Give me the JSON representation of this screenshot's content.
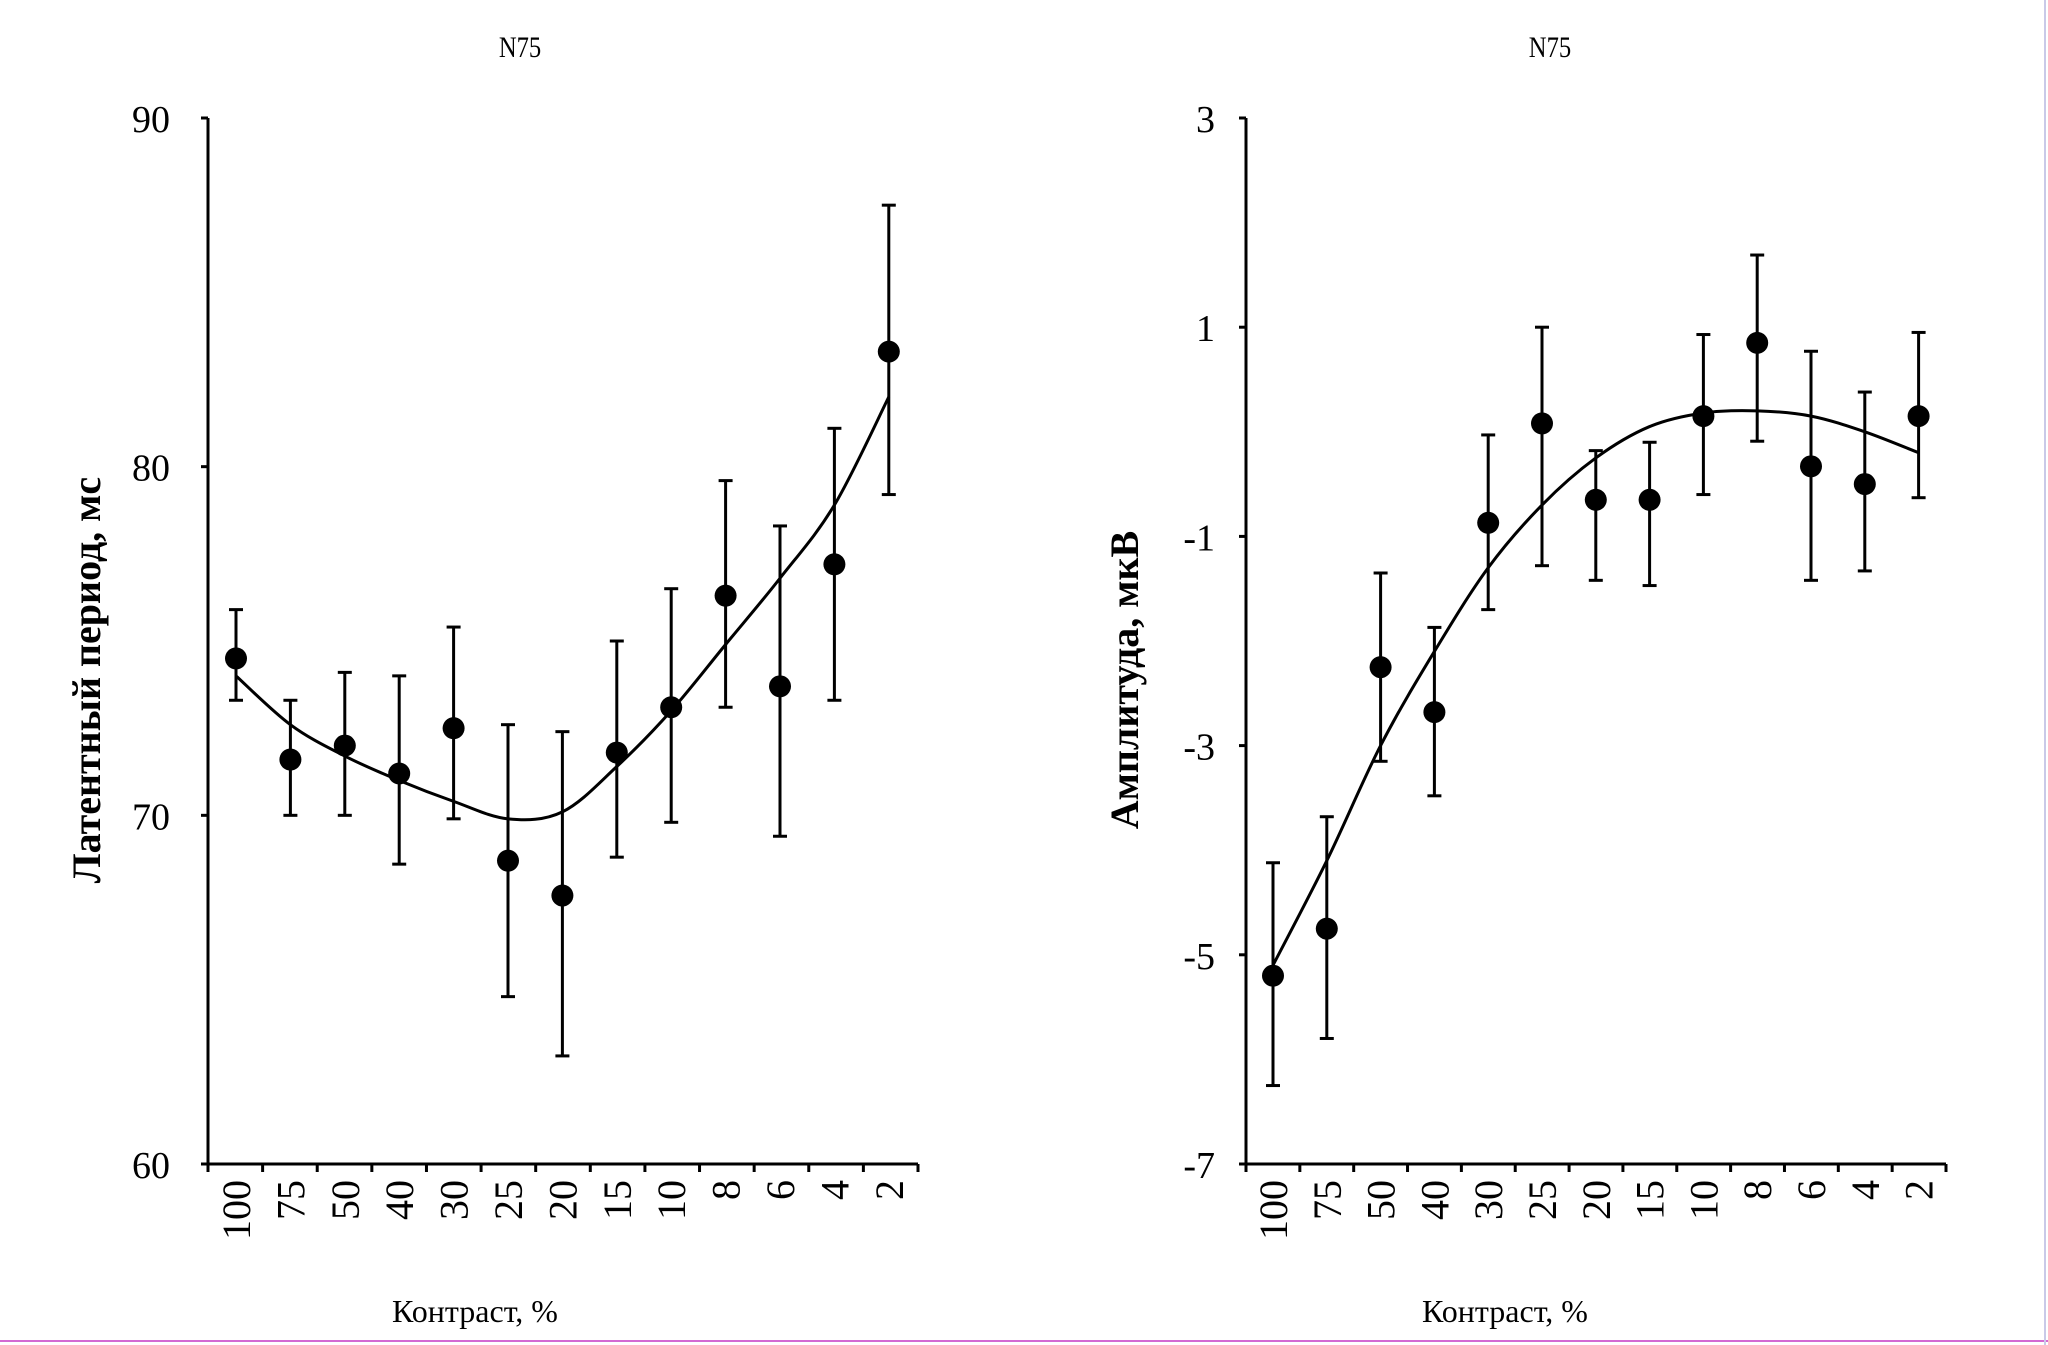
{
  "chart_data": [
    {
      "type": "scatter",
      "title": "N75",
      "xlabel": "Контраст, %",
      "ylabel": "Латентный период, мс",
      "categories": [
        "100",
        "75",
        "50",
        "40",
        "30",
        "25",
        "20",
        "15",
        "10",
        "8",
        "6",
        "4",
        "2"
      ],
      "ylim": [
        60,
        90
      ],
      "yticks": [
        "60",
        "70",
        "80",
        "90"
      ],
      "series": [
        {
          "values": [
            74.5,
            71.6,
            72.0,
            71.2,
            72.5,
            68.7,
            67.7,
            71.8,
            73.1,
            76.3,
            73.7,
            77.2,
            83.3
          ],
          "err_low": [
            73.3,
            70.0,
            70.0,
            68.6,
            69.9,
            64.8,
            63.1,
            68.8,
            69.8,
            73.1,
            69.4,
            73.3,
            79.2
          ],
          "err_high": [
            75.9,
            73.3,
            74.1,
            74.0,
            75.4,
            72.6,
            72.4,
            75.0,
            76.5,
            79.6,
            78.3,
            81.1,
            87.5
          ]
        }
      ],
      "trend": [
        74.0,
        72.6,
        71.7,
        71.0,
        70.4,
        69.9,
        70.1,
        71.4,
        73.0,
        74.9,
        76.8,
        78.9,
        82.0
      ],
      "grid": false
    },
    {
      "type": "scatter",
      "title": "N75",
      "xlabel": "Контраст, %",
      "ylabel": "Амплитуда, мкВ",
      "categories": [
        "100",
        "75",
        "50",
        "40",
        "30",
        "25",
        "20",
        "15",
        "10",
        "8",
        "6",
        "4",
        "2"
      ],
      "ylim": [
        -7,
        3
      ],
      "yticks": [
        "3",
        "1",
        "-1",
        "-3",
        "-5",
        "-7"
      ],
      "series": [
        {
          "values": [
            -5.2,
            -4.75,
            -2.25,
            -2.68,
            -0.87,
            0.08,
            -0.65,
            -0.65,
            0.15,
            0.85,
            -0.33,
            -0.5,
            0.15
          ],
          "err_low": [
            -6.25,
            -5.8,
            -3.15,
            -3.48,
            -1.7,
            -1.28,
            -1.42,
            -1.47,
            -0.6,
            -0.09,
            -1.42,
            -1.33,
            -0.63
          ],
          "err_high": [
            -4.12,
            -3.68,
            -1.35,
            -1.87,
            -0.03,
            1.0,
            -0.18,
            -0.1,
            0.93,
            1.69,
            0.77,
            0.38,
            0.95
          ]
        }
      ],
      "trend": [
        -5.1,
        -4.1,
        -3.0,
        -2.1,
        -1.3,
        -0.7,
        -0.25,
        0.05,
        0.18,
        0.2,
        0.15,
        0.0,
        -0.2
      ],
      "grid": false
    }
  ]
}
